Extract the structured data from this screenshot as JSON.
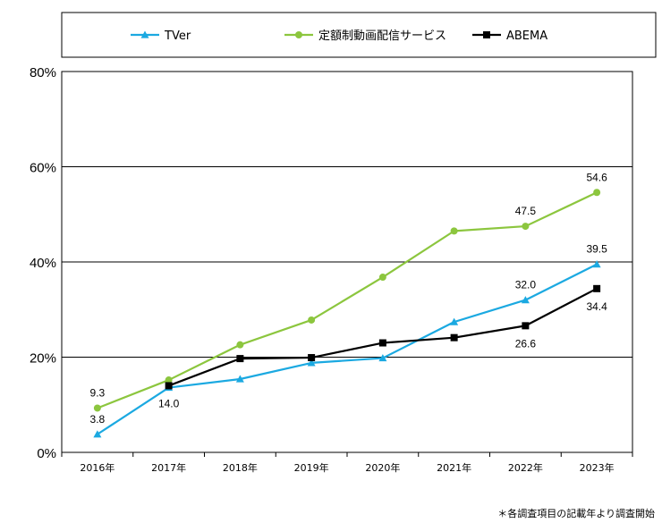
{
  "chart_data": {
    "type": "line",
    "categories": [
      "2016年",
      "2017年",
      "2018年",
      "2019年",
      "2020年",
      "2021年",
      "2022年",
      "2023年"
    ],
    "ylim": [
      0,
      80
    ],
    "yticks": [
      0,
      20,
      40,
      60,
      80
    ],
    "ytick_labels": [
      "0%",
      "20%",
      "40%",
      "60%",
      "80%"
    ],
    "grid": "horizontal",
    "legend_position": "top",
    "series": [
      {
        "name": "TVer",
        "color": "#1BA9E1",
        "marker": "triangle",
        "values": [
          3.8,
          13.6,
          15.4,
          18.8,
          19.8,
          27.4,
          32.0,
          39.5
        ],
        "labels": [
          {
            "index": 0,
            "text": "3.8",
            "position": "above"
          },
          {
            "index": 6,
            "text": "32.0",
            "position": "above"
          },
          {
            "index": 7,
            "text": "39.5",
            "position": "above"
          }
        ]
      },
      {
        "name": "定額制動画配信サービス",
        "color": "#8CC63E",
        "marker": "circle",
        "values": [
          9.3,
          15.2,
          22.6,
          27.8,
          36.8,
          46.5,
          47.5,
          54.6
        ],
        "labels": [
          {
            "index": 0,
            "text": "9.3",
            "position": "above"
          },
          {
            "index": 6,
            "text": "47.5",
            "position": "above"
          },
          {
            "index": 7,
            "text": "54.6",
            "position": "above"
          }
        ]
      },
      {
        "name": "ABEMA",
        "color": "#000000",
        "marker": "square",
        "values": [
          null,
          14.0,
          19.7,
          19.9,
          23.0,
          24.1,
          26.6,
          34.4
        ],
        "labels": [
          {
            "index": 1,
            "text": "14.0",
            "position": "below"
          },
          {
            "index": 6,
            "text": "26.6",
            "position": "below"
          },
          {
            "index": 7,
            "text": "34.4",
            "position": "below"
          }
        ]
      }
    ]
  },
  "footnote": "＊各調査項目の記載年より調査開始"
}
